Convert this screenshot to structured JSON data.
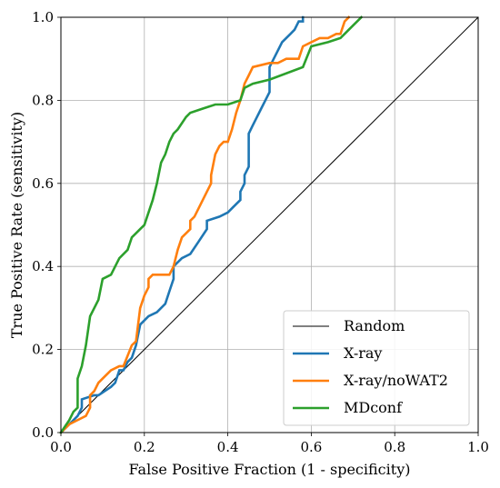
{
  "chart_data": {
    "type": "line",
    "title": "",
    "xlabel": "False Positive Fraction (1 - specificity)",
    "ylabel": "True Positive Rate (sensitivity)",
    "xlim": [
      0.0,
      1.0
    ],
    "ylim": [
      0.0,
      1.0
    ],
    "xticks": [
      "0.0",
      "0.2",
      "0.4",
      "0.6",
      "0.8",
      "1.0"
    ],
    "yticks": [
      "0.0",
      "0.2",
      "0.4",
      "0.6",
      "0.8",
      "1.0"
    ],
    "grid": true,
    "legend_position": "bottom-right",
    "series": [
      {
        "name": "Random",
        "color": "#000000",
        "x": [
          0.0,
          1.0
        ],
        "y": [
          0.0,
          1.0
        ]
      },
      {
        "name": "X-ray",
        "color": "#1f77b4",
        "x": [
          0.0,
          0.03,
          0.04,
          0.05,
          0.05,
          0.08,
          0.09,
          0.12,
          0.13,
          0.14,
          0.15,
          0.16,
          0.17,
          0.18,
          0.19,
          0.21,
          0.23,
          0.25,
          0.26,
          0.27,
          0.27,
          0.29,
          0.31,
          0.33,
          0.35,
          0.35,
          0.38,
          0.4,
          0.42,
          0.43,
          0.43,
          0.44,
          0.44,
          0.45,
          0.45,
          0.46,
          0.47,
          0.48,
          0.49,
          0.5,
          0.5,
          0.51,
          0.53,
          0.55,
          0.56,
          0.57,
          0.58,
          0.58
        ],
        "y": [
          0.0,
          0.03,
          0.04,
          0.06,
          0.08,
          0.09,
          0.09,
          0.11,
          0.12,
          0.15,
          0.15,
          0.17,
          0.18,
          0.21,
          0.26,
          0.28,
          0.29,
          0.31,
          0.34,
          0.37,
          0.4,
          0.42,
          0.43,
          0.46,
          0.49,
          0.51,
          0.52,
          0.53,
          0.55,
          0.56,
          0.58,
          0.6,
          0.62,
          0.64,
          0.72,
          0.74,
          0.76,
          0.78,
          0.8,
          0.82,
          0.88,
          0.9,
          0.94,
          0.96,
          0.97,
          0.99,
          0.99,
          1.0
        ]
      },
      {
        "name": "X-ray/noWAT2",
        "color": "#ff7f0e",
        "x": [
          0.0,
          0.02,
          0.06,
          0.07,
          0.07,
          0.08,
          0.09,
          0.1,
          0.12,
          0.14,
          0.15,
          0.17,
          0.18,
          0.19,
          0.2,
          0.21,
          0.21,
          0.22,
          0.24,
          0.26,
          0.27,
          0.28,
          0.29,
          0.31,
          0.31,
          0.32,
          0.33,
          0.35,
          0.36,
          0.36,
          0.37,
          0.38,
          0.39,
          0.4,
          0.41,
          0.42,
          0.43,
          0.44,
          0.45,
          0.46,
          0.5,
          0.52,
          0.54,
          0.57,
          0.58,
          0.6,
          0.62,
          0.64,
          0.66,
          0.67,
          0.68,
          0.69
        ],
        "y": [
          0.0,
          0.02,
          0.04,
          0.06,
          0.09,
          0.1,
          0.12,
          0.13,
          0.15,
          0.16,
          0.16,
          0.21,
          0.22,
          0.3,
          0.33,
          0.35,
          0.37,
          0.38,
          0.38,
          0.38,
          0.4,
          0.44,
          0.47,
          0.49,
          0.51,
          0.52,
          0.54,
          0.58,
          0.6,
          0.62,
          0.67,
          0.69,
          0.7,
          0.7,
          0.73,
          0.77,
          0.8,
          0.84,
          0.86,
          0.88,
          0.89,
          0.89,
          0.9,
          0.9,
          0.93,
          0.94,
          0.95,
          0.95,
          0.96,
          0.96,
          0.99,
          1.0
        ]
      },
      {
        "name": "MDconf",
        "color": "#2ca02c",
        "x": [
          0.0,
          0.02,
          0.03,
          0.04,
          0.04,
          0.05,
          0.06,
          0.07,
          0.08,
          0.09,
          0.1,
          0.12,
          0.13,
          0.14,
          0.16,
          0.17,
          0.19,
          0.2,
          0.21,
          0.22,
          0.23,
          0.24,
          0.25,
          0.26,
          0.27,
          0.28,
          0.3,
          0.31,
          0.34,
          0.37,
          0.4,
          0.43,
          0.44,
          0.46,
          0.5,
          0.58,
          0.6,
          0.64,
          0.67,
          0.7,
          0.72
        ],
        "y": [
          0.0,
          0.03,
          0.05,
          0.06,
          0.13,
          0.16,
          0.21,
          0.28,
          0.3,
          0.32,
          0.37,
          0.38,
          0.4,
          0.42,
          0.44,
          0.47,
          0.49,
          0.5,
          0.53,
          0.56,
          0.6,
          0.65,
          0.67,
          0.7,
          0.72,
          0.73,
          0.76,
          0.77,
          0.78,
          0.79,
          0.79,
          0.8,
          0.83,
          0.84,
          0.85,
          0.88,
          0.93,
          0.94,
          0.95,
          0.98,
          1.0
        ]
      }
    ]
  }
}
